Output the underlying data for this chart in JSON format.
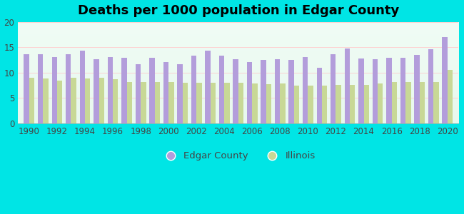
{
  "title": "Deaths per 1000 population in Edgar County",
  "years": [
    1990,
    1991,
    1992,
    1993,
    1994,
    1995,
    1996,
    1997,
    1998,
    1999,
    2000,
    2001,
    2002,
    2003,
    2004,
    2005,
    2006,
    2007,
    2008,
    2009,
    2010,
    2011,
    2012,
    2013,
    2014,
    2015,
    2016,
    2017,
    2018,
    2019,
    2020
  ],
  "edgar_county": [
    13.6,
    13.7,
    13.1,
    13.7,
    14.3,
    12.6,
    13.1,
    13.0,
    11.7,
    13.0,
    12.1,
    11.6,
    13.3,
    14.4,
    13.3,
    12.7,
    12.1,
    12.5,
    12.6,
    12.5,
    13.1,
    11.0,
    13.7,
    14.8,
    12.8,
    12.7,
    13.0,
    13.0,
    13.5,
    14.6,
    17.0
  ],
  "illinois": [
    9.0,
    8.9,
    8.5,
    9.0,
    8.9,
    9.0,
    8.7,
    8.1,
    8.2,
    8.2,
    8.2,
    8.0,
    8.0,
    8.0,
    8.0,
    8.0,
    7.9,
    7.8,
    7.9,
    7.5,
    7.5,
    7.5,
    7.6,
    7.6,
    7.6,
    7.9,
    8.1,
    8.1,
    8.2,
    8.2,
    10.6
  ],
  "edgar_color": "#b39ddb",
  "illinois_color": "#c8d896",
  "bg_color": "#00e5e5",
  "ylim": [
    0,
    20
  ],
  "yticks": [
    0,
    5,
    10,
    15,
    20
  ],
  "xtick_years": [
    1990,
    1992,
    1994,
    1996,
    1998,
    2000,
    2002,
    2004,
    2006,
    2008,
    2010,
    2012,
    2014,
    2016,
    2018,
    2020
  ],
  "title_fontsize": 13,
  "tick_fontsize": 8.5,
  "legend_fontsize": 9.5,
  "bar_width": 0.38
}
